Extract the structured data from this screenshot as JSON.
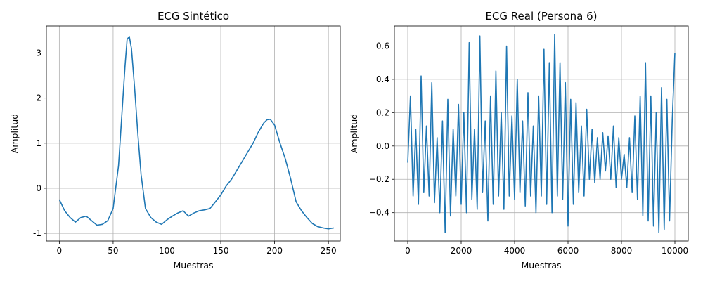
{
  "chart_data": [
    {
      "type": "line",
      "title": "ECG Sintético",
      "xlabel": "Muestras",
      "ylabel": "Amplitud",
      "xlim": [
        -12,
        261
      ],
      "ylim": [
        -1.17,
        3.6
      ],
      "xticks": [
        0,
        50,
        100,
        150,
        200,
        250
      ],
      "yticks": [
        -1,
        0,
        1,
        2,
        3
      ],
      "grid": true,
      "color": "#1f77b4",
      "series": [
        {
          "x": [
            0,
            5,
            10,
            15,
            20,
            25,
            30,
            35,
            40,
            45,
            50,
            55,
            58,
            61,
            63,
            65,
            67,
            70,
            73,
            76,
            80,
            85,
            90,
            95,
            100,
            105,
            110,
            115,
            120,
            125,
            130,
            135,
            140,
            145,
            150,
            155,
            160,
            165,
            170,
            175,
            180,
            185,
            190,
            193,
            196,
            200,
            205,
            210,
            215,
            220,
            225,
            230,
            235,
            240,
            245,
            250,
            255
          ],
          "y": [
            -0.25,
            -0.5,
            -0.65,
            -0.75,
            -0.65,
            -0.62,
            -0.72,
            -0.82,
            -0.8,
            -0.72,
            -0.45,
            0.5,
            1.6,
            2.7,
            3.3,
            3.37,
            3.1,
            2.2,
            1.2,
            0.3,
            -0.45,
            -0.65,
            -0.75,
            -0.8,
            -0.7,
            -0.62,
            -0.55,
            -0.5,
            -0.62,
            -0.55,
            -0.5,
            -0.48,
            -0.45,
            -0.3,
            -0.15,
            0.05,
            0.2,
            0.4,
            0.6,
            0.8,
            1.0,
            1.25,
            1.45,
            1.52,
            1.53,
            1.4,
            1.0,
            0.65,
            0.2,
            -0.3,
            -0.5,
            -0.65,
            -0.78,
            -0.85,
            -0.88,
            -0.9,
            -0.88
          ]
        }
      ]
    },
    {
      "type": "line",
      "title": "ECG Real (Persona 6)",
      "xlabel": "Muestras",
      "ylabel": "Amplitud",
      "xlim": [
        -500,
        10500
      ],
      "ylim": [
        -0.57,
        0.72
      ],
      "xticks": [
        0,
        2000,
        4000,
        6000,
        8000,
        10000
      ],
      "yticks": [
        -0.4,
        -0.2,
        0.0,
        0.2,
        0.4,
        0.6
      ],
      "ytick_labels": [
        "−0.4",
        "−0.2",
        "0.0",
        "0.2",
        "0.4",
        "0.6"
      ],
      "grid": true,
      "color": "#1f77b4",
      "series": [
        {
          "x": [
            0,
            100,
            200,
            300,
            400,
            500,
            600,
            700,
            800,
            900,
            1000,
            1100,
            1200,
            1300,
            1400,
            1500,
            1600,
            1700,
            1800,
            1900,
            2000,
            2100,
            2200,
            2300,
            2400,
            2500,
            2600,
            2700,
            2800,
            2900,
            3000,
            3100,
            3200,
            3300,
            3400,
            3500,
            3600,
            3700,
            3800,
            3900,
            4000,
            4100,
            4200,
            4300,
            4400,
            4500,
            4600,
            4700,
            4800,
            4900,
            5000,
            5100,
            5200,
            5300,
            5400,
            5500,
            5600,
            5700,
            5800,
            5900,
            6000,
            6100,
            6200,
            6300,
            6400,
            6500,
            6600,
            6700,
            6800,
            6900,
            7000,
            7100,
            7200,
            7300,
            7400,
            7500,
            7600,
            7700,
            7800,
            7900,
            8000,
            8100,
            8200,
            8300,
            8400,
            8500,
            8600,
            8700,
            8800,
            8900,
            9000,
            9100,
            9200,
            9300,
            9400,
            9500,
            9600,
            9700,
            9800,
            9900,
            10000
          ],
          "y": [
            -0.1,
            0.3,
            -0.3,
            0.1,
            -0.35,
            0.42,
            -0.28,
            0.12,
            -0.3,
            0.38,
            -0.34,
            0.05,
            -0.4,
            0.15,
            -0.52,
            0.28,
            -0.42,
            0.1,
            -0.3,
            0.25,
            -0.35,
            0.2,
            -0.4,
            0.62,
            -0.32,
            0.1,
            -0.38,
            0.66,
            -0.28,
            0.15,
            -0.45,
            0.3,
            -0.35,
            0.45,
            -0.3,
            0.2,
            -0.38,
            0.6,
            -0.3,
            0.18,
            -0.32,
            0.4,
            -0.28,
            0.15,
            -0.36,
            0.32,
            -0.3,
            0.12,
            -0.4,
            0.3,
            -0.3,
            0.58,
            -0.35,
            0.5,
            -0.4,
            0.67,
            -0.3,
            0.5,
            -0.32,
            0.38,
            -0.48,
            0.28,
            -0.35,
            0.26,
            -0.28,
            0.12,
            -0.3,
            0.22,
            -0.2,
            0.1,
            -0.22,
            0.05,
            -0.2,
            0.08,
            -0.15,
            0.06,
            -0.2,
            0.12,
            -0.25,
            0.05,
            -0.2,
            -0.05,
            -0.25,
            0.05,
            -0.28,
            0.18,
            -0.32,
            0.3,
            -0.42,
            0.5,
            -0.45,
            0.3,
            -0.48,
            0.2,
            -0.52,
            0.35,
            -0.5,
            0.28,
            -0.45,
            0.15,
            0.56
          ]
        }
      ]
    }
  ]
}
